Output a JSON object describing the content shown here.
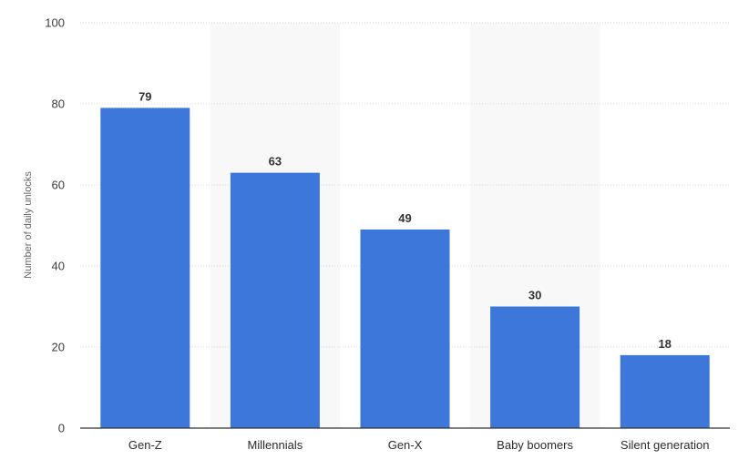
{
  "chart_data": {
    "type": "bar",
    "ylabel": "Number of daily unlocks",
    "xlabel": "",
    "categories": [
      "Gen-Z",
      "Millennials",
      "Gen-X",
      "Baby boomers",
      "Silent generation"
    ],
    "values": [
      79,
      63,
      49,
      30,
      18
    ],
    "ylim": [
      0,
      100
    ],
    "yticks": [
      0,
      20,
      40,
      60,
      80,
      100
    ],
    "grid": true,
    "data_labels": true,
    "bar_color": "#3d77d9",
    "band_color": "#f8f8f8"
  }
}
